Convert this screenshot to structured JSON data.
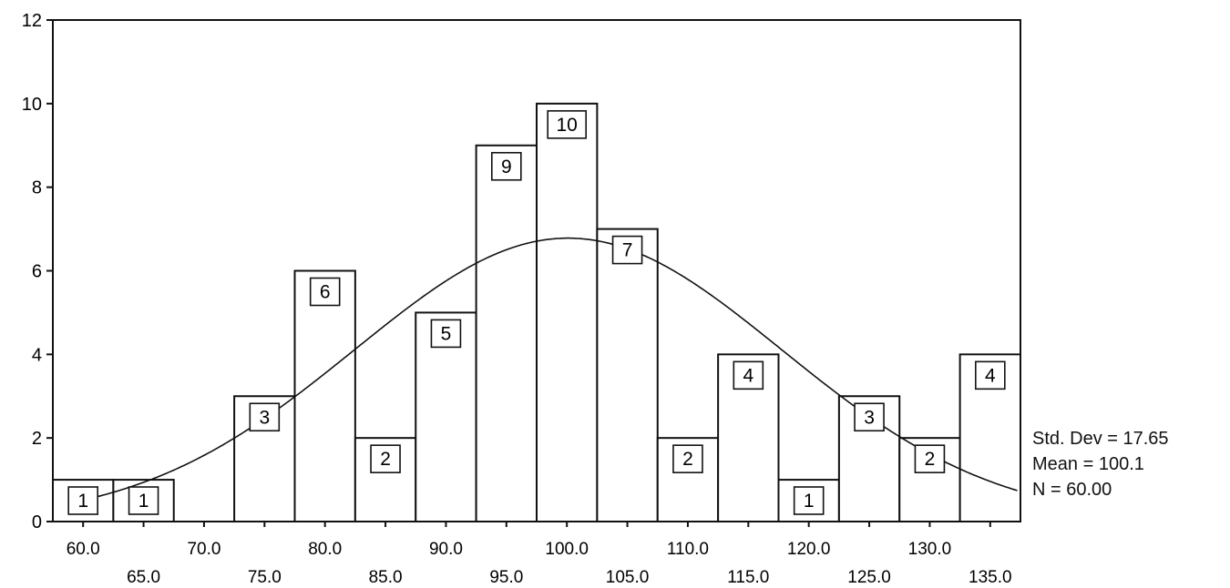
{
  "chart_data": {
    "type": "bar",
    "title": "",
    "xlabel": "",
    "ylabel": "",
    "ylim": [
      0,
      12
    ],
    "yticks": [
      0,
      2,
      4,
      6,
      8,
      10,
      12
    ],
    "xticks_upper": [
      "60.0",
      "70.0",
      "80.0",
      "90.0",
      "100.0",
      "110.0",
      "120.0",
      "130.0"
    ],
    "xticks_lower": [
      "65.0",
      "75.0",
      "85.0",
      "95.0",
      "105.0",
      "115.0",
      "125.0",
      "135.0"
    ],
    "categories": [
      60,
      65,
      70,
      75,
      80,
      85,
      90,
      95,
      100,
      105,
      110,
      115,
      120,
      125,
      130,
      135
    ],
    "values": [
      1,
      1,
      0,
      3,
      6,
      2,
      5,
      9,
      10,
      7,
      2,
      4,
      1,
      3,
      2,
      4
    ],
    "normal_curve": {
      "mean": 100.1,
      "std_dev": 17.65,
      "n": 60
    },
    "grid": false
  },
  "stats": {
    "std_dev": "Std. Dev = 17.65",
    "mean": "Mean = 100.1",
    "n": "N = 60.00"
  }
}
